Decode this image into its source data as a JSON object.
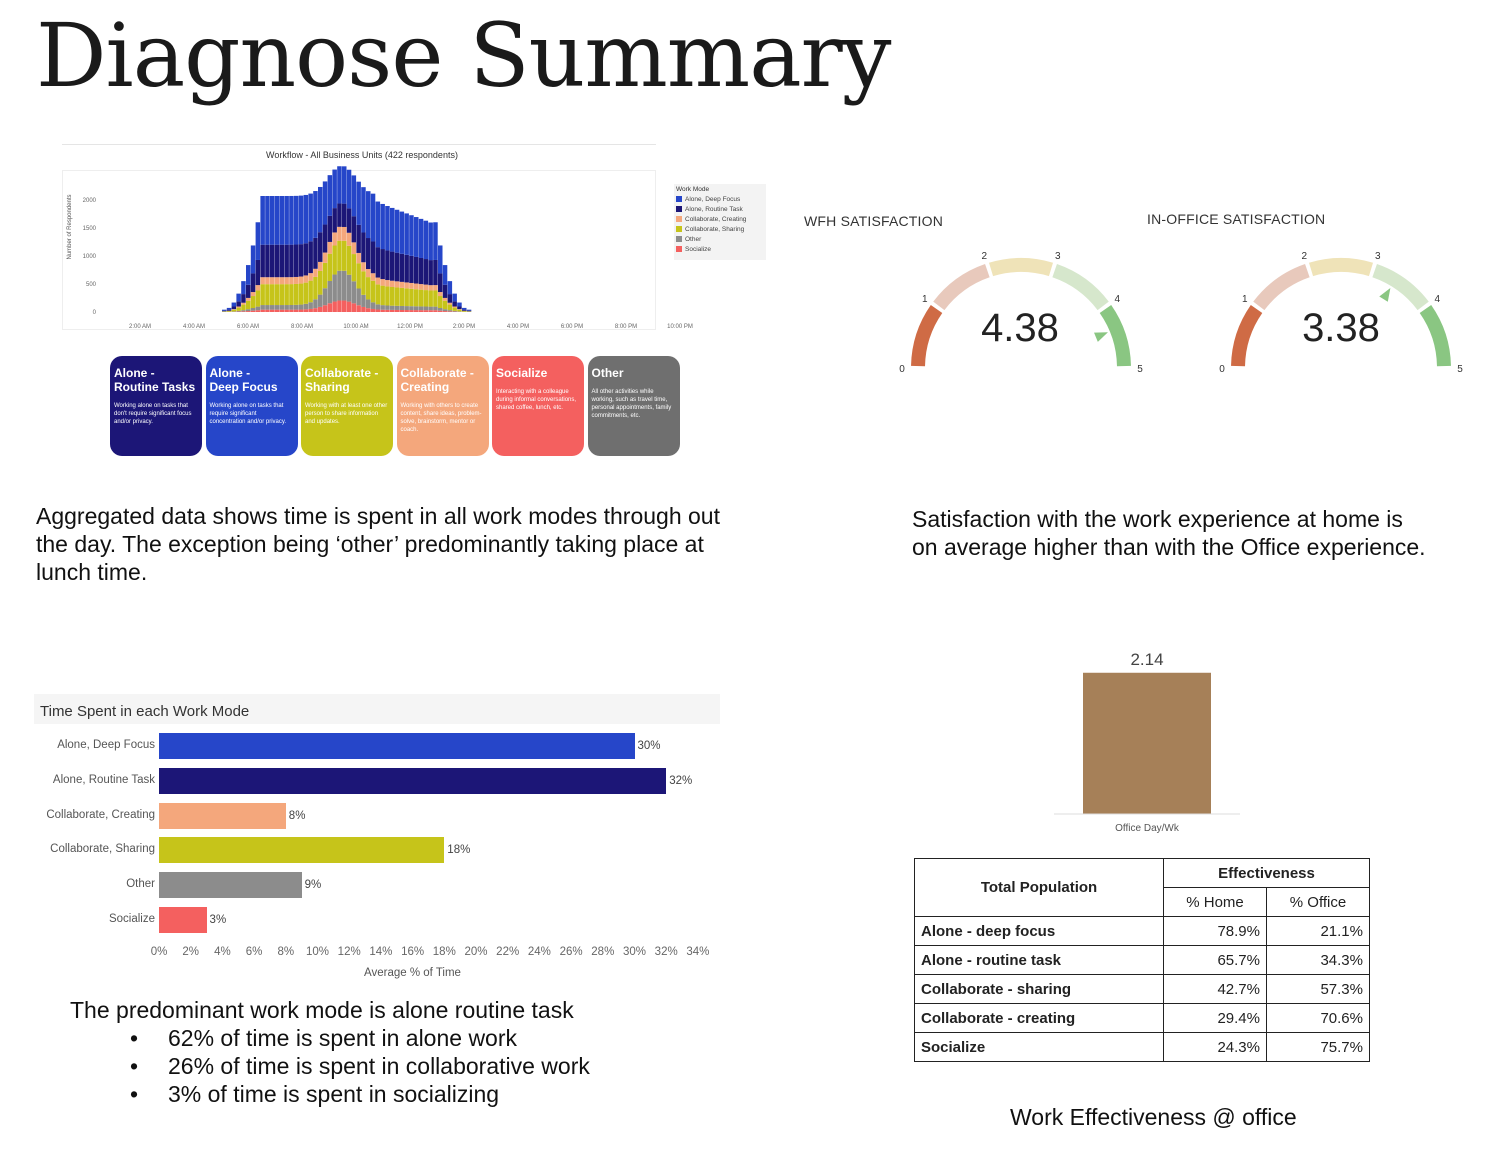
{
  "page": {
    "title": "Diagnose Summary"
  },
  "workflow_chart": {
    "title": "Workflow - All Business Units (422 respondents)",
    "ylabel": "Number of Respondents",
    "y_ticks": [
      "2000",
      "1500",
      "1000",
      "500",
      "0"
    ],
    "x_ticks": [
      "2:00 AM",
      "4:00 AM",
      "6:00 AM",
      "8:00 AM",
      "10:00 AM",
      "12:00 PM",
      "2:00 PM",
      "4:00 PM",
      "6:00 PM",
      "8:00 PM",
      "10:00 PM"
    ],
    "legend_title": "Work Mode",
    "legend": [
      "Alone, Deep Focus",
      "Alone, Routine Task",
      "Collaborate, Creating",
      "Collaborate, Sharing",
      "Other",
      "Socialize"
    ]
  },
  "colors": {
    "deep_focus": "#2646c9",
    "routine": "#1c1677",
    "creating": "#f4a77c",
    "sharing": "#c6c41a",
    "other": "#8c8c8c",
    "socialize": "#f4605f",
    "bar_brown": "#a68058"
  },
  "mode_cards": [
    {
      "title": "Alone -\nRoutine Tasks",
      "desc": "Working alone on tasks that don't require significant focus and/or privacy."
    },
    {
      "title": "Alone -\nDeep Focus",
      "desc": "Working alone on tasks that require significant concentration and/or privacy."
    },
    {
      "title": "Collaborate -\nSharing",
      "desc": "Working with at least one other person to share information and updates."
    },
    {
      "title": "Collaborate -\nCreating",
      "desc": "Working with others to create content, share ideas, problem-solve, brainstorm, mentor or coach."
    },
    {
      "title": "Socialize",
      "desc": "Interacting with a colleague during informal conversations, shared coffee, lunch, etc."
    },
    {
      "title": "Other",
      "desc": "All other activities while working, such as travel time, personal appointments, family commitments, etc."
    }
  ],
  "text": {
    "aggregated": "Aggregated data shows time is spent in all work modes through out the day. The exception being ‘other’ predominantly taking place at lunch time.",
    "satisfaction": "Satisfaction with the work experience at home is on average higher than with the Office experience.",
    "predominant": "The predominant work mode is alone routine task",
    "bullets": [
      "62% of time is spent in alone work",
      "26% of time is spent in collaborative work",
      "3% of time is spent in socializing"
    ],
    "effectiveness_caption": "Work Effectiveness @ office"
  },
  "gauges": [
    {
      "label": "WFH SATISFACTION",
      "value_text": "4.38",
      "value": 4.38,
      "ticks": [
        "0",
        "1",
        "2",
        "3",
        "4",
        "5"
      ]
    },
    {
      "label": "IN-OFFICE SATISFACTION",
      "value_text": "3.38",
      "value": 3.38,
      "ticks": [
        "0",
        "1",
        "2",
        "3",
        "4",
        "5"
      ]
    }
  ],
  "chart_data": [
    {
      "type": "bar",
      "title": "Time Spent in each Work Mode",
      "orientation": "horizontal",
      "categories": [
        "Alone, Deep Focus",
        "Alone, Routine Task",
        "Collaborate, Creating",
        "Collaborate, Sharing",
        "Other",
        "Socialize"
      ],
      "values": [
        30,
        32,
        8,
        18,
        9,
        3
      ],
      "value_labels": [
        "30%",
        "32%",
        "8%",
        "18%",
        "9%",
        "3%"
      ],
      "xlabel": "Average % of Time",
      "xlim": [
        0,
        35
      ],
      "x_ticks": [
        "0%",
        "2%",
        "4%",
        "6%",
        "8%",
        "10%",
        "12%",
        "14%",
        "16%",
        "18%",
        "20%",
        "22%",
        "24%",
        "26%",
        "28%",
        "30%",
        "32%",
        "34%"
      ]
    },
    {
      "type": "bar",
      "categories": [
        "Office Day/Wk"
      ],
      "values": [
        2.14
      ],
      "value_labels": [
        "2.14"
      ],
      "ylim": [
        0,
        2.5
      ]
    }
  ],
  "table": {
    "header_left": "Total Population",
    "header_group": "Effectiveness",
    "col1": "% Home",
    "col2": "% Office",
    "rows": [
      {
        "label": "Alone - deep focus",
        "home": "78.9%",
        "office": "21.1%"
      },
      {
        "label": "Alone - routine task",
        "home": "65.7%",
        "office": "34.3%"
      },
      {
        "label": "Collaborate - sharing",
        "home": "42.7%",
        "office": "57.3%"
      },
      {
        "label": "Collaborate - creating",
        "home": "29.4%",
        "office": "70.6%"
      },
      {
        "label": "Socialize",
        "home": "24.3%",
        "office": "75.7%"
      }
    ]
  }
}
